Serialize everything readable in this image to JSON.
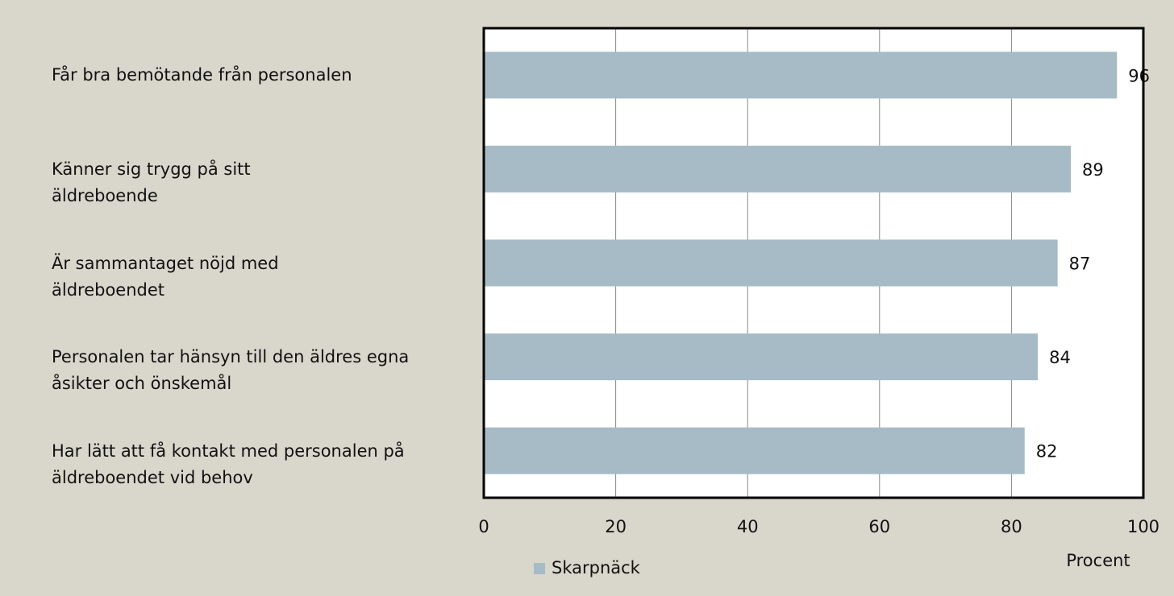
{
  "chart_data": {
    "type": "bar",
    "orientation": "horizontal",
    "categories": [
      "Får bra bemötande från personalen",
      "Känner sig trygg på sitt äldreboende",
      "Är sammantaget nöjd med äldreboendet",
      "Personalen tar hänsyn till den äldres egna åsikter och önskemål",
      "Har lätt att få kontakt med personalen på äldreboendet vid behov"
    ],
    "series": [
      {
        "name": "Skarpnäck",
        "color": "#a6bbc6",
        "values": [
          96,
          89,
          87,
          84,
          82
        ]
      }
    ],
    "xlabel": "Procent",
    "xlim": [
      0,
      100
    ],
    "xticks": [
      0,
      20,
      40,
      60,
      80,
      100
    ],
    "grid": true,
    "legend": "bottom"
  }
}
